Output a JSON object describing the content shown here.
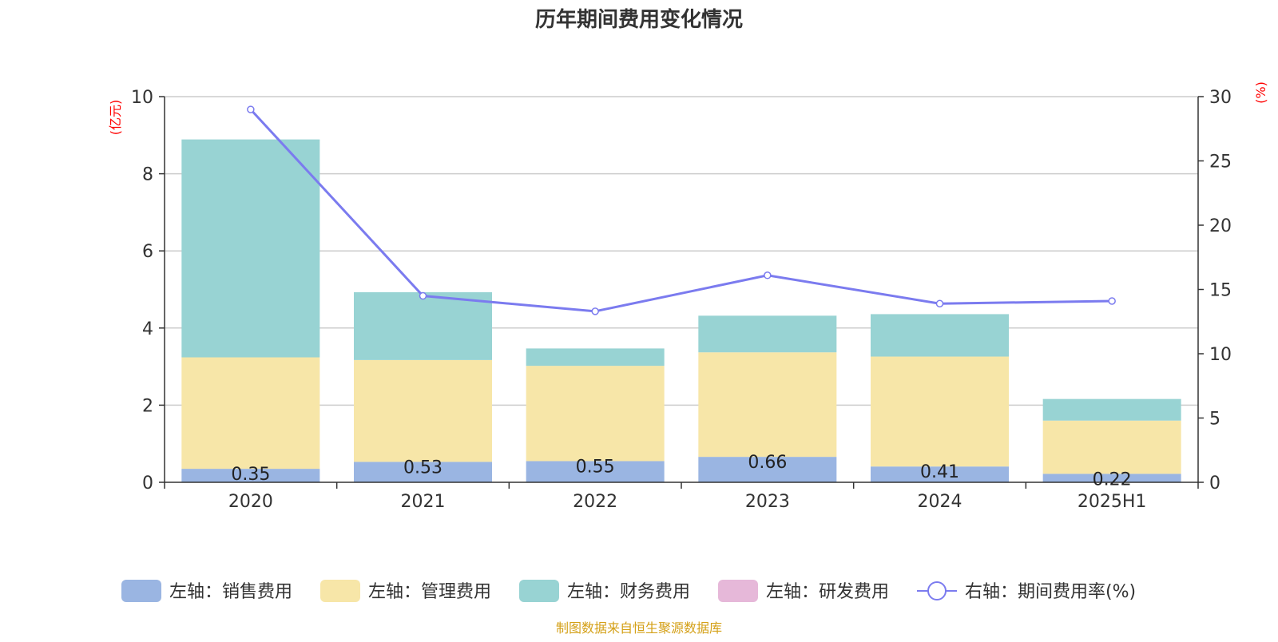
{
  "chart_data": {
    "type": "bar",
    "title": "历年期间费用变化情况",
    "categories": [
      "2020",
      "2021",
      "2022",
      "2023",
      "2024",
      "2025H1"
    ],
    "y_left": {
      "unit_label": "(亿元)",
      "range": [
        0,
        10
      ],
      "ticks": [
        0,
        2,
        4,
        6,
        8,
        10
      ]
    },
    "y_right": {
      "unit_label": "(%)",
      "range": [
        0,
        30
      ],
      "ticks": [
        0,
        5,
        10,
        15,
        20,
        25,
        30
      ]
    },
    "stacked": true,
    "series": [
      {
        "name": "左轴：销售费用",
        "axis": "left",
        "type": "bar",
        "color": "#9ab5e2",
        "values": [
          0.35,
          0.53,
          0.55,
          0.66,
          0.41,
          0.22
        ],
        "labels": [
          "0.35",
          "0.53",
          "0.55",
          "0.66",
          "0.41",
          "0.22"
        ]
      },
      {
        "name": "左轴：管理费用",
        "axis": "left",
        "type": "bar",
        "color": "#f7e6a8",
        "values": [
          2.89,
          2.64,
          2.47,
          2.71,
          2.85,
          1.38
        ]
      },
      {
        "name": "左轴：财务费用",
        "axis": "left",
        "type": "bar",
        "color": "#98d3d3",
        "values": [
          5.65,
          1.76,
          0.45,
          0.95,
          1.1,
          0.56
        ]
      },
      {
        "name": "左轴：研发费用",
        "axis": "left",
        "type": "bar",
        "color": "#e6b8d9",
        "values": [
          0,
          0,
          0,
          0,
          0,
          0
        ]
      },
      {
        "name": "右轴：期间费用率(%)",
        "axis": "right",
        "type": "line",
        "color": "#7b7bef",
        "values": [
          29.0,
          14.5,
          13.3,
          16.1,
          13.9,
          14.1
        ]
      }
    ],
    "grid": true,
    "legend_position": "bottom",
    "source_note": "制图数据来自恒生聚源数据库"
  }
}
